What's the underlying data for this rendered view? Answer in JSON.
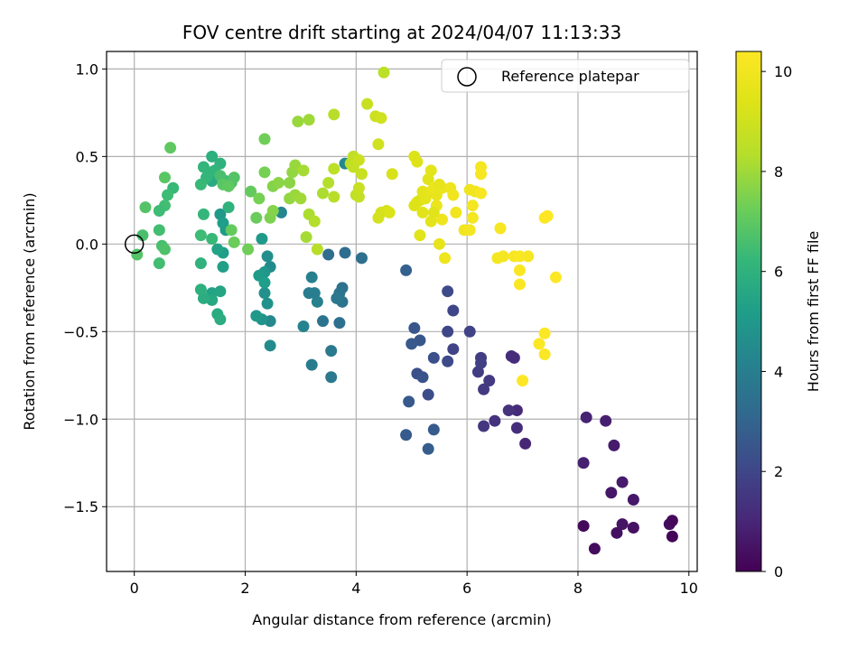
{
  "chart_data": {
    "type": "scatter",
    "title": "FOV centre drift starting at 2024/04/07 11:13:33",
    "xlabel": "Angular distance from reference (arcmin)",
    "ylabel": "Rotation from reference (arcmin)",
    "xlim": [
      -0.5,
      10.15
    ],
    "ylim": [
      -1.87,
      1.1
    ],
    "xticks": [
      0,
      2,
      4,
      6,
      8,
      10
    ],
    "xtick_labels": [
      "0",
      "2",
      "4",
      "6",
      "8",
      "10"
    ],
    "yticks": [
      1.0,
      0.5,
      0.0,
      -0.5,
      -1.0,
      -1.5
    ],
    "ytick_labels": [
      "1.0",
      "0.5",
      "0.0",
      "−0.5",
      "−1.0",
      "−1.5"
    ],
    "grid": true,
    "legend": {
      "placement": "top-right",
      "entries": [
        "Reference platepar"
      ]
    },
    "reference_point": {
      "x": 0,
      "y": 0,
      "label": "Reference platepar"
    },
    "colormap": "viridis",
    "colorbar": {
      "label": "Hours from first FF file",
      "range": [
        0,
        10.4
      ],
      "ticks": [
        0,
        2,
        4,
        6,
        8,
        10
      ],
      "tick_labels": [
        "0",
        "2",
        "4",
        "6",
        "8",
        "10"
      ]
    },
    "points": [
      [
        8.1,
        -1.61,
        0.2
      ],
      [
        8.3,
        -1.74,
        0.3
      ],
      [
        8.7,
        -1.65,
        0.4
      ],
      [
        8.8,
        -1.6,
        0.5
      ],
      [
        9.0,
        -1.62,
        0.4
      ],
      [
        9.65,
        -1.6,
        0.3
      ],
      [
        9.7,
        -1.58,
        0.2
      ],
      [
        9.7,
        -1.67,
        0.1
      ],
      [
        8.6,
        -1.42,
        0.6
      ],
      [
        8.8,
        -1.36,
        0.7
      ],
      [
        9.0,
        -1.46,
        0.6
      ],
      [
        8.1,
        -1.25,
        0.8
      ],
      [
        8.15,
        -0.99,
        0.9
      ],
      [
        8.5,
        -1.01,
        0.8
      ],
      [
        8.65,
        -1.15,
        0.7
      ],
      [
        6.8,
        -0.64,
        1.2
      ],
      [
        6.85,
        -0.65,
        1.2
      ],
      [
        6.9,
        -0.95,
        1.1
      ],
      [
        6.9,
        -1.05,
        1.2
      ],
      [
        7.05,
        -1.14,
        1.0
      ],
      [
        6.5,
        -1.01,
        1.4
      ],
      [
        6.75,
        -0.95,
        1.4
      ],
      [
        6.3,
        -1.04,
        1.5
      ],
      [
        6.3,
        -0.83,
        1.6
      ],
      [
        6.4,
        -0.78,
        1.6
      ],
      [
        6.2,
        -0.73,
        1.7
      ],
      [
        6.25,
        -0.65,
        1.7
      ],
      [
        6.25,
        -0.68,
        1.8
      ],
      [
        6.05,
        -0.5,
        1.9
      ],
      [
        5.75,
        -0.6,
        1.9
      ],
      [
        5.75,
        -0.38,
        2.0
      ],
      [
        5.65,
        -0.27,
        2.1
      ],
      [
        5.65,
        -0.5,
        2.0
      ],
      [
        5.65,
        -0.67,
        2.1
      ],
      [
        5.3,
        -0.86,
        2.2
      ],
      [
        5.4,
        -0.65,
        2.3
      ],
      [
        5.1,
        -0.74,
        2.3
      ],
      [
        5.2,
        -0.76,
        2.4
      ],
      [
        5.05,
        -0.48,
        2.5
      ],
      [
        5.15,
        -0.55,
        2.5
      ],
      [
        5.0,
        -0.57,
        2.6
      ],
      [
        4.95,
        -0.9,
        2.6
      ],
      [
        4.9,
        -1.09,
        2.7
      ],
      [
        5.3,
        -1.17,
        2.8
      ],
      [
        5.4,
        -1.06,
        2.7
      ],
      [
        4.9,
        -0.15,
        2.9
      ],
      [
        3.8,
        -0.05,
        3.3
      ],
      [
        4.1,
        -0.08,
        3.4
      ],
      [
        3.5,
        -0.06,
        3.3
      ],
      [
        3.7,
        -0.45,
        3.5
      ],
      [
        3.75,
        -0.25,
        3.5
      ],
      [
        3.7,
        -0.28,
        3.6
      ],
      [
        3.75,
        -0.33,
        3.6
      ],
      [
        3.65,
        -0.31,
        3.7
      ],
      [
        3.4,
        -0.44,
        3.6
      ],
      [
        3.55,
        -0.61,
        3.8
      ],
      [
        3.55,
        -0.76,
        3.8
      ],
      [
        3.2,
        -0.69,
        3.9
      ],
      [
        3.15,
        -0.28,
        3.9
      ],
      [
        3.25,
        -0.28,
        4.0
      ],
      [
        3.3,
        -0.33,
        4.1
      ],
      [
        3.2,
        -0.19,
        4.1
      ],
      [
        3.05,
        -0.47,
        4.2
      ],
      [
        3.8,
        0.46,
        4.4
      ],
      [
        2.65,
        0.18,
        4.3
      ],
      [
        2.45,
        -0.44,
        4.4
      ],
      [
        2.45,
        -0.58,
        4.5
      ],
      [
        2.45,
        -0.13,
        4.5
      ],
      [
        2.4,
        -0.07,
        4.6
      ],
      [
        2.4,
        -0.34,
        4.7
      ],
      [
        2.35,
        -0.28,
        4.7
      ],
      [
        2.3,
        -0.43,
        4.8
      ],
      [
        2.35,
        -0.16,
        4.9
      ],
      [
        2.3,
        0.03,
        5.0
      ],
      [
        2.2,
        -0.41,
        5.0
      ],
      [
        2.25,
        -0.18,
        5.1
      ],
      [
        2.35,
        -0.22,
        5.2
      ],
      [
        1.55,
        0.17,
        5.0
      ],
      [
        1.65,
        0.08,
        5.1
      ],
      [
        1.6,
        0.12,
        5.2
      ],
      [
        1.6,
        -0.05,
        5.2
      ],
      [
        1.6,
        -0.13,
        5.3
      ],
      [
        1.5,
        -0.03,
        5.4
      ],
      [
        1.4,
        -0.28,
        5.4
      ],
      [
        1.55,
        -0.27,
        5.5
      ],
      [
        1.4,
        -0.32,
        5.6
      ],
      [
        1.5,
        -0.4,
        5.7
      ],
      [
        1.55,
        -0.43,
        5.8
      ],
      [
        1.25,
        -0.31,
        5.8
      ],
      [
        1.2,
        -0.26,
        5.9
      ],
      [
        1.2,
        -0.11,
        6.0
      ],
      [
        1.4,
        0.36,
        5.7
      ],
      [
        1.4,
        0.5,
        5.9
      ],
      [
        1.35,
        0.41,
        6.0
      ],
      [
        1.55,
        0.46,
        6.0
      ],
      [
        1.45,
        0.42,
        6.1
      ],
      [
        1.3,
        0.38,
        6.2
      ],
      [
        1.25,
        0.44,
        6.1
      ],
      [
        1.2,
        0.34,
        6.3
      ],
      [
        1.25,
        0.17,
        6.2
      ],
      [
        1.2,
        0.05,
        6.4
      ],
      [
        1.4,
        0.03,
        6.3
      ],
      [
        1.7,
        0.21,
        6.0
      ],
      [
        0.7,
        0.32,
        6.3
      ],
      [
        0.6,
        0.28,
        6.4
      ],
      [
        0.55,
        0.22,
        6.5
      ],
      [
        0.45,
        0.19,
        6.4
      ],
      [
        0.45,
        0.08,
        6.5
      ],
      [
        0.5,
        -0.01,
        6.6
      ],
      [
        0.45,
        -0.11,
        6.5
      ],
      [
        0.55,
        -0.03,
        6.7
      ],
      [
        0.15,
        0.05,
        6.6
      ],
      [
        0.05,
        -0.06,
        6.8
      ],
      [
        0.2,
        0.21,
        6.8
      ],
      [
        0.55,
        0.38,
        6.9
      ],
      [
        0.65,
        0.55,
        7.0
      ],
      [
        1.65,
        0.36,
        6.4
      ],
      [
        1.55,
        0.39,
        6.6
      ],
      [
        1.75,
        0.35,
        6.7
      ],
      [
        1.8,
        0.38,
        6.8
      ],
      [
        1.6,
        0.34,
        6.9
      ],
      [
        1.7,
        0.33,
        7.0
      ],
      [
        1.75,
        0.08,
        7.1
      ],
      [
        1.8,
        0.01,
        7.2
      ],
      [
        2.1,
        0.3,
        7.1
      ],
      [
        2.2,
        0.15,
        7.2
      ],
      [
        2.05,
        -0.03,
        7.3
      ],
      [
        2.35,
        0.6,
        7.3
      ],
      [
        2.35,
        0.41,
        7.4
      ],
      [
        2.25,
        0.26,
        7.4
      ],
      [
        2.45,
        0.15,
        7.5
      ],
      [
        2.5,
        0.33,
        7.6
      ],
      [
        2.5,
        0.19,
        7.6
      ],
      [
        2.6,
        0.35,
        7.7
      ],
      [
        2.8,
        0.35,
        7.7
      ],
      [
        2.85,
        0.41,
        7.8
      ],
      [
        2.9,
        0.45,
        7.9
      ],
      [
        2.8,
        0.26,
        7.8
      ],
      [
        2.9,
        0.28,
        7.9
      ],
      [
        3.0,
        0.26,
        8.0
      ],
      [
        3.05,
        0.42,
        8.1
      ],
      [
        2.95,
        0.7,
        7.9
      ],
      [
        3.15,
        0.71,
        8.0
      ],
      [
        3.1,
        0.04,
        8.1
      ],
      [
        3.15,
        0.17,
        8.2
      ],
      [
        3.25,
        0.13,
        8.3
      ],
      [
        3.3,
        -0.03,
        8.4
      ],
      [
        3.4,
        0.29,
        8.2
      ],
      [
        3.5,
        0.35,
        8.3
      ],
      [
        3.6,
        0.27,
        8.4
      ],
      [
        3.6,
        0.74,
        8.4
      ],
      [
        3.6,
        0.43,
        8.5
      ],
      [
        3.9,
        0.46,
        8.5
      ],
      [
        3.95,
        0.5,
        8.6
      ],
      [
        3.95,
        0.44,
        8.7
      ],
      [
        4.0,
        0.28,
        8.6
      ],
      [
        4.05,
        0.27,
        8.7
      ],
      [
        4.05,
        0.32,
        8.8
      ],
      [
        4.1,
        0.4,
        8.8
      ],
      [
        4.05,
        0.48,
        8.9
      ],
      [
        4.2,
        0.8,
        8.8
      ],
      [
        4.35,
        0.73,
        8.9
      ],
      [
        4.45,
        0.72,
        9.0
      ],
      [
        4.5,
        0.98,
        8.5
      ],
      [
        4.4,
        0.57,
        9.0
      ],
      [
        4.4,
        0.15,
        9.1
      ],
      [
        4.45,
        0.18,
        9.1
      ],
      [
        4.55,
        0.19,
        9.2
      ],
      [
        4.65,
        0.4,
        9.2
      ],
      [
        4.6,
        0.18,
        9.3
      ],
      [
        5.05,
        0.5,
        9.3
      ],
      [
        5.1,
        0.47,
        9.4
      ],
      [
        5.1,
        0.24,
        9.5
      ],
      [
        5.15,
        0.25,
        9.4
      ],
      [
        5.15,
        0.05,
        9.5
      ],
      [
        5.2,
        0.3,
        9.6
      ],
      [
        5.25,
        0.26,
        9.6
      ],
      [
        5.3,
        0.37,
        9.5
      ],
      [
        5.35,
        0.42,
        9.6
      ],
      [
        5.35,
        0.3,
        9.7
      ],
      [
        5.45,
        0.28,
        9.7
      ],
      [
        5.4,
        0.32,
        9.8
      ],
      [
        5.45,
        0.22,
        9.8
      ],
      [
        5.5,
        0.0,
        9.7
      ],
      [
        5.55,
        0.32,
        9.8
      ],
      [
        5.55,
        0.14,
        9.9
      ],
      [
        5.6,
        -0.08,
        9.9
      ],
      [
        5.7,
        0.32,
        9.9
      ],
      [
        5.75,
        0.28,
        10.0
      ],
      [
        5.8,
        0.18,
        10.0
      ],
      [
        5.95,
        0.08,
        10.0
      ],
      [
        6.05,
        0.08,
        10.1
      ],
      [
        6.05,
        0.31,
        9.9
      ],
      [
        6.15,
        0.3,
        10.0
      ],
      [
        6.1,
        0.22,
        10.1
      ],
      [
        6.25,
        0.44,
        10.1
      ],
      [
        6.25,
        0.4,
        10.2
      ],
      [
        6.25,
        0.29,
        10.2
      ],
      [
        6.1,
        0.15,
        10.1
      ],
      [
        5.35,
        0.13,
        9.6
      ],
      [
        5.05,
        0.22,
        9.4
      ],
      [
        5.4,
        0.18,
        9.5
      ],
      [
        5.2,
        0.18,
        9.5
      ],
      [
        5.5,
        0.34,
        9.7
      ],
      [
        6.55,
        -0.08,
        10.1
      ],
      [
        6.65,
        -0.07,
        10.1
      ],
      [
        6.6,
        0.09,
        10.2
      ],
      [
        6.85,
        -0.07,
        10.2
      ],
      [
        6.95,
        -0.07,
        10.3
      ],
      [
        6.95,
        -0.15,
        10.3
      ],
      [
        7.1,
        -0.07,
        10.2
      ],
      [
        6.95,
        -0.23,
        10.3
      ],
      [
        7.3,
        -0.57,
        10.35
      ],
      [
        7.4,
        -0.51,
        10.35
      ],
      [
        7.4,
        -0.63,
        10.35
      ],
      [
        7.4,
        0.15,
        10.4
      ],
      [
        7.45,
        0.16,
        10.4
      ],
      [
        7.6,
        -0.19,
        10.4
      ],
      [
        7.0,
        -0.78,
        10.4
      ]
    ]
  }
}
